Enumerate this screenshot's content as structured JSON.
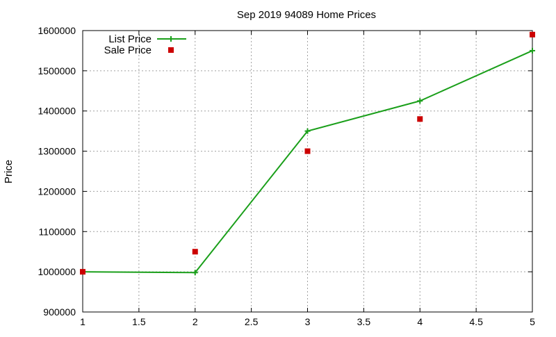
{
  "chart_data": {
    "type": "line",
    "title": "Sep 2019 94089 Home Prices",
    "xlabel": "",
    "ylabel": "Price",
    "xlim": [
      1,
      5
    ],
    "ylim": [
      900000,
      1600000
    ],
    "x_ticks": [
      1,
      1.5,
      2,
      2.5,
      3,
      3.5,
      4,
      4.5,
      5
    ],
    "x_tick_labels": [
      "1",
      "1.5",
      "2",
      "2.5",
      "3",
      "3.5",
      "4",
      "4.5",
      "5"
    ],
    "y_ticks": [
      900000,
      1000000,
      1100000,
      1200000,
      1300000,
      1400000,
      1500000,
      1600000
    ],
    "y_tick_labels": [
      "900000",
      "1000000",
      "1100000",
      "1200000",
      "1300000",
      "1400000",
      "1500000",
      "1600000"
    ],
    "grid": true,
    "legend_position": "top-left",
    "series": [
      {
        "name": "List Price",
        "style": "linespoints",
        "marker": "plus",
        "color": "#1a9f1a",
        "x": [
          1,
          1.5,
          2,
          3,
          4,
          5
        ],
        "y": [
          1000000,
          999000,
          998000,
          1350000,
          1425000,
          1550000
        ]
      },
      {
        "name": "Sale Price",
        "style": "points",
        "marker": "square",
        "color": "#cc0000",
        "x": [
          1,
          2,
          3,
          4,
          5
        ],
        "y": [
          1000000,
          1050000,
          1300000,
          1380000,
          1590000
        ]
      }
    ]
  }
}
